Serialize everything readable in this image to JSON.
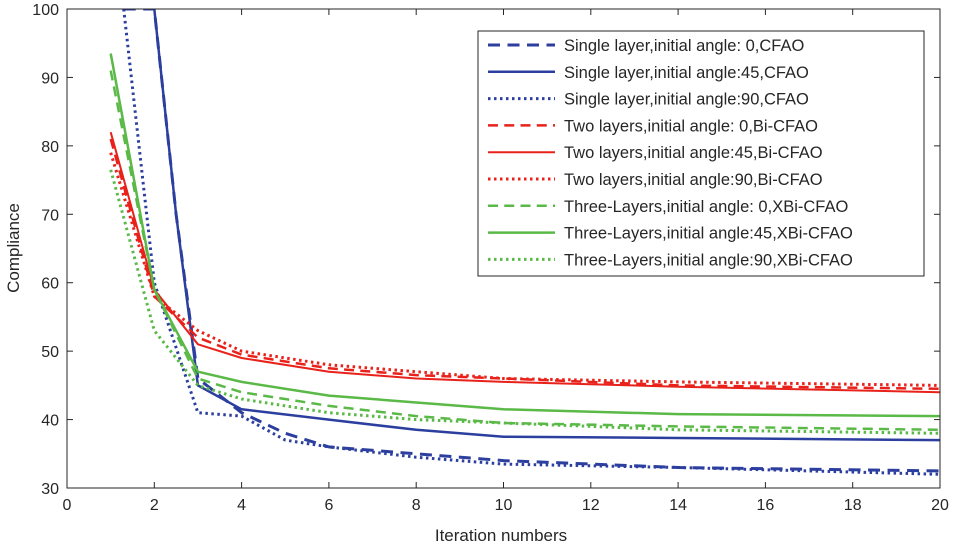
{
  "chart_data": {
    "type": "line",
    "title": "",
    "xlabel": "Iteration numbers",
    "ylabel": "Compliance",
    "xlim": [
      0,
      20
    ],
    "ylim": [
      30,
      100
    ],
    "xticks": [
      0,
      2,
      4,
      6,
      8,
      10,
      12,
      14,
      16,
      18,
      20
    ],
    "yticks": [
      30,
      40,
      50,
      60,
      70,
      80,
      90,
      100
    ],
    "legend_position": "top-right",
    "series": [
      {
        "name": "Single layer,initial angle: 0,CFAO",
        "color": "#2c3f9f",
        "dash": "dashed",
        "width": 3.0,
        "x": [
          1.3,
          2,
          2.5,
          3,
          4,
          5,
          6,
          8,
          10,
          14,
          20
        ],
        "y": [
          100,
          100,
          70,
          46,
          41,
          38,
          36,
          35,
          34,
          33,
          32.5
        ]
      },
      {
        "name": "Single layer,initial angle:45,CFAO",
        "color": "#2c3f9f",
        "dash": "solid",
        "width": 2.5,
        "x": [
          2,
          2.5,
          3,
          4,
          6,
          8,
          10,
          14,
          20
        ],
        "y": [
          100,
          70,
          45,
          41.5,
          40,
          38.5,
          37.5,
          37.3,
          37
        ]
      },
      {
        "name": "Single layer,initial angle:90,CFAO",
        "color": "#2c3f9f",
        "dash": "dotted",
        "width": 3.0,
        "x": [
          1.3,
          2,
          3,
          4,
          5,
          6,
          8,
          10,
          14,
          20
        ],
        "y": [
          100,
          60,
          41,
          40.5,
          37,
          36,
          34.5,
          33.5,
          33,
          32
        ]
      },
      {
        "name": "Two layers,initial angle: 0,Bi-CFAO",
        "color": "#e8221b",
        "dash": "dashed",
        "width": 2.5,
        "x": [
          1,
          2,
          3,
          4,
          6,
          8,
          10,
          14,
          20
        ],
        "y": [
          81,
          58,
          52,
          49.5,
          47.5,
          46.5,
          46,
          45,
          44.5
        ]
      },
      {
        "name": "Two layers,initial angle:45,Bi-CFAO",
        "color": "#e8221b",
        "dash": "solid",
        "width": 2.0,
        "x": [
          1,
          2,
          3,
          4,
          6,
          8,
          10,
          14,
          20
        ],
        "y": [
          82,
          59,
          51,
          49,
          47,
          46,
          45.5,
          44.8,
          44
        ]
      },
      {
        "name": "Two layers,initial angle:90,Bi-CFAO",
        "color": "#e8221b",
        "dash": "dotted",
        "width": 3.0,
        "x": [
          1,
          2,
          3,
          4,
          6,
          8,
          10,
          14,
          20
        ],
        "y": [
          79,
          58,
          53,
          50,
          48,
          47,
          46,
          45.5,
          45
        ]
      },
      {
        "name": "Three-Layers,initial angle: 0,XBi-CFAO",
        "color": "#5ab947",
        "dash": "dashed",
        "width": 2.5,
        "x": [
          1,
          2,
          3,
          4,
          6,
          8,
          10,
          14,
          20
        ],
        "y": [
          91,
          59,
          46,
          44,
          42,
          40.5,
          39.5,
          39,
          38.5
        ]
      },
      {
        "name": "Three-Layers,initial angle:45,XBi-CFAO",
        "color": "#5ab947",
        "dash": "solid",
        "width": 2.5,
        "x": [
          1,
          2,
          3,
          4,
          6,
          8,
          10,
          14,
          20
        ],
        "y": [
          93.5,
          59,
          47,
          45.5,
          43.5,
          42.5,
          41.5,
          40.8,
          40.5
        ]
      },
      {
        "name": "Three-Layers,initial angle:90,XBi-CFAO",
        "color": "#5ab947",
        "dash": "dotted",
        "width": 3.0,
        "x": [
          1,
          2,
          3,
          4,
          6,
          8,
          10,
          14,
          20
        ],
        "y": [
          76.5,
          53,
          45,
          43,
          41,
          40,
          39.5,
          38.5,
          38
        ]
      }
    ]
  }
}
